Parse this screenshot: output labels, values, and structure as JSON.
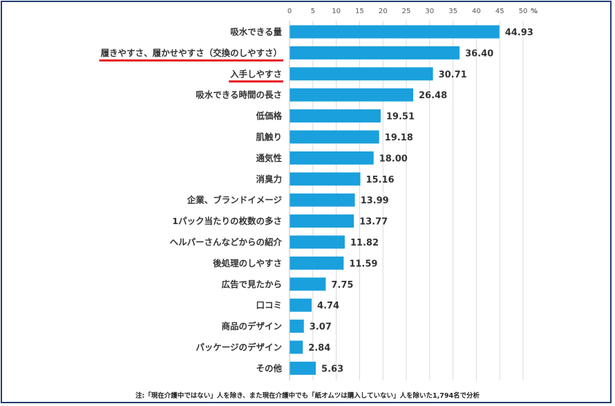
{
  "chart_data": {
    "type": "bar",
    "orientation": "horizontal",
    "title": "",
    "xlabel": "%",
    "ylabel": "",
    "xlim": [
      0,
      50
    ],
    "xticks": [
      "0",
      "5",
      "10",
      "15",
      "20",
      "25",
      "30",
      "35",
      "40",
      "45",
      "50"
    ],
    "unit": "%",
    "grid": true,
    "categories": [
      "吸水できる量",
      "履きやすさ、履かせやすさ（交換のしやすさ）",
      "入手しやすさ",
      "吸水できる時間の長さ",
      "低価格",
      "肌触り",
      "通気性",
      "消臭力",
      "企業、ブランドイメージ",
      "1パック当たりの枚数の多さ",
      "ヘルパーさんなどからの紹介",
      "後処理のしやすさ",
      "広告で見たから",
      "口コミ",
      "商品のデザイン",
      "パッケージのデザイン",
      "その他"
    ],
    "values": [
      44.93,
      36.4,
      30.71,
      26.48,
      19.51,
      19.18,
      18.0,
      15.16,
      13.99,
      13.77,
      11.82,
      11.59,
      7.75,
      4.74,
      3.07,
      2.84,
      5.63
    ],
    "value_labels": [
      "44.93",
      "36.40",
      "30.71",
      "26.48",
      "19.51",
      "19.18",
      "18.00",
      "15.16",
      "13.99",
      "13.77",
      "11.82",
      "11.59",
      "7.75",
      "4.74",
      "3.07",
      "2.84",
      "5.63"
    ],
    "highlighted_categories": [
      1,
      2
    ],
    "colors": {
      "bar": "#1aa0dc",
      "highlight_underline": "#e8141b",
      "grid": "#d9d9d9",
      "text": "#333333"
    }
  },
  "footnote": "注:「現在介護中ではない」人を除き、また現在介護中でも「紙オムツは購入していない」人を除いた1,794名で分析"
}
